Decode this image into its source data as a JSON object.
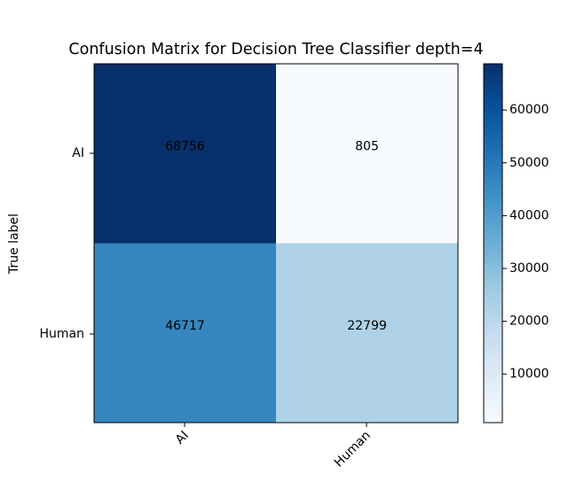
{
  "chart_data": {
    "type": "heatmap",
    "title": "Confusion Matrix for Decision Tree Classifier depth=4",
    "ylabel": "True label",
    "xlabel": "",
    "x_categories": [
      "AI",
      "Human"
    ],
    "y_categories": [
      "AI",
      "Human"
    ],
    "matrix": [
      [
        68756,
        805
      ],
      [
        46717,
        22799
      ]
    ],
    "colormap": "Blues",
    "colorbar": {
      "range": [
        805,
        68756
      ],
      "ticks": [
        10000,
        20000,
        30000,
        40000,
        50000,
        60000
      ],
      "tick_labels": [
        "10000",
        "20000",
        "30000",
        "40000",
        "50000",
        "60000"
      ]
    },
    "grid": false,
    "x_tick_rotation_deg": 45
  }
}
